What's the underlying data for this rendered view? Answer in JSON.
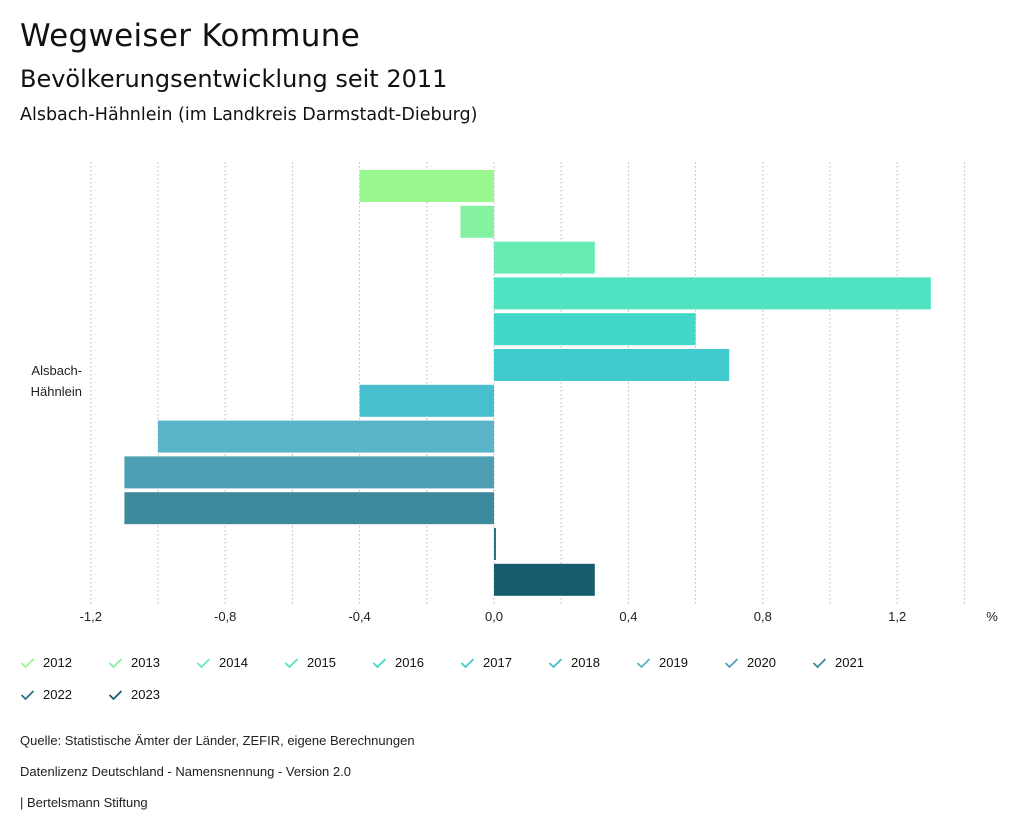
{
  "header": {
    "title": "Wegweiser Kommune",
    "subtitle": "Bevölkerungsentwicklung seit 2011",
    "region": "Alsbach-Hähnlein (im Landkreis Darmstadt-Dieburg)"
  },
  "chart_data": {
    "type": "bar",
    "orientation": "horizontal",
    "category_label_lines": [
      "Alsbach-",
      "Hähnlein"
    ],
    "unit": "%",
    "xlim": [
      -1.3,
      1.4
    ],
    "ticks": [
      {
        "value": -1.2,
        "label": "-1,2"
      },
      {
        "value": -0.8,
        "label": "-0,8"
      },
      {
        "value": -0.4,
        "label": "-0,4"
      },
      {
        "value": 0.0,
        "label": "0,0"
      },
      {
        "value": 0.4,
        "label": "0,4"
      },
      {
        "value": 0.8,
        "label": "0,8"
      },
      {
        "value": 1.2,
        "label": "1,2"
      }
    ],
    "series": [
      {
        "name": "2012",
        "value": -0.4,
        "color": "#98f78f"
      },
      {
        "name": "2013",
        "value": -0.1,
        "color": "#85f2a2"
      },
      {
        "name": "2014",
        "value": 0.3,
        "color": "#68ebb2"
      },
      {
        "name": "2015",
        "value": 1.3,
        "color": "#50e3c2"
      },
      {
        "name": "2016",
        "value": 0.6,
        "color": "#42d7c8"
      },
      {
        "name": "2017",
        "value": 0.7,
        "color": "#40cbce"
      },
      {
        "name": "2018",
        "value": -0.4,
        "color": "#48bfcf"
      },
      {
        "name": "2019",
        "value": -1.0,
        "color": "#5ab4c8"
      },
      {
        "name": "2020",
        "value": -1.1,
        "color": "#4e9fb4"
      },
      {
        "name": "2021",
        "value": -1.1,
        "color": "#3d8a9c"
      },
      {
        "name": "2022",
        "value": 0.0,
        "color": "#2b7184"
      },
      {
        "name": "2023",
        "value": 0.3,
        "color": "#175c6c"
      }
    ]
  },
  "footer": {
    "source": "Quelle: Statistische Ämter der Länder, ZEFIR, eigene Berechnungen",
    "license": "Datenlizenz Deutschland - Namensnennung - Version 2.0",
    "publisher": "| Bertelsmann Stiftung"
  }
}
